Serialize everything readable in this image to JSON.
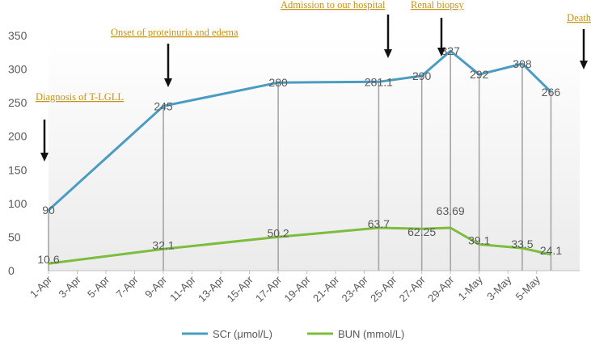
{
  "chart_data": {
    "type": "line",
    "x": [
      "1-Apr",
      "9-Apr",
      "17-Apr",
      "24-Apr",
      "27-Apr",
      "29-Apr",
      "1-May",
      "4-May",
      "6-May"
    ],
    "x_day": [
      0,
      8,
      16,
      23,
      26,
      28,
      30,
      33,
      35
    ],
    "x_tick_labels": [
      "1-Apr",
      "3-Apr",
      "5-Apr",
      "7-Apr",
      "9-Apr",
      "11-Apr",
      "13-Apr",
      "15-Apr",
      "17-Apr",
      "19-Apr",
      "21-Apr",
      "23-Apr",
      "25-Apr",
      "27-Apr",
      "29-Apr",
      "1-May",
      "3-May",
      "5-May"
    ],
    "ylim": [
      0,
      350
    ],
    "y_ticks": [
      "0",
      "50",
      "100",
      "150",
      "200",
      "250",
      "300",
      "350"
    ],
    "legend_position": "bottom",
    "series": [
      {
        "name": "SCr (μmol/L)",
        "color": "#4a9cc3",
        "values": [
          90,
          245,
          280,
          281.1,
          290,
          327,
          292,
          308,
          266
        ],
        "labels": [
          "90",
          "245",
          "280",
          "281.1",
          "290",
          "327",
          "292",
          "308",
          "266"
        ]
      },
      {
        "name": "BUN (mmol/L)",
        "color": "#7cbd3c",
        "values": [
          10.6,
          32.1,
          50.2,
          63.7,
          62.25,
          63.69,
          39.1,
          33.5,
          24.1
        ],
        "labels": [
          "10.6",
          "32.1",
          "50.2",
          "63.7",
          "62.25",
          "63.69",
          "39.1",
          "33.5",
          "24.1"
        ]
      }
    ],
    "annotations": [
      {
        "id": "diagnosis",
        "text": "Diagnosis of T-LGLL"
      },
      {
        "id": "onset",
        "text": "Onset of proteinuria and edema"
      },
      {
        "id": "admission",
        "text": "Admission to our hospital"
      },
      {
        "id": "biopsy",
        "text": "Renal biopsy"
      },
      {
        "id": "death",
        "text": "Death"
      }
    ]
  }
}
